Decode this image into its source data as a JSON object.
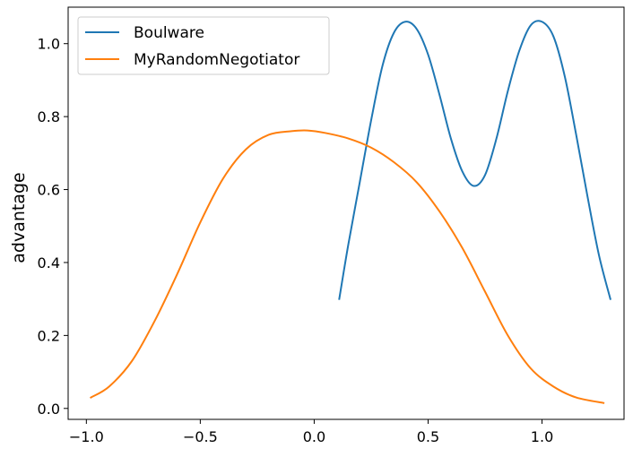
{
  "chart_data": {
    "type": "line",
    "title": "",
    "xlabel": "",
    "ylabel": "advantage",
    "xlim": [
      -1.08,
      1.36
    ],
    "ylim": [
      -0.03,
      1.1
    ],
    "xticks": [
      -1.0,
      -0.5,
      0.0,
      0.5,
      1.0
    ],
    "xtick_labels": [
      "−1.0",
      "−0.5",
      "0.0",
      "0.5",
      "1.0"
    ],
    "yticks": [
      0.0,
      0.2,
      0.4,
      0.6,
      0.8,
      1.0
    ],
    "ytick_labels": [
      "0.0",
      "0.2",
      "0.4",
      "0.6",
      "0.8",
      "1.0"
    ],
    "grid": false,
    "legend_position": "top-left",
    "series": [
      {
        "name": "Boulware",
        "color": "#1f77b4",
        "x": [
          0.11,
          0.15,
          0.2,
          0.25,
          0.3,
          0.35,
          0.4,
          0.45,
          0.5,
          0.55,
          0.6,
          0.65,
          0.7,
          0.75,
          0.8,
          0.85,
          0.9,
          0.95,
          1.0,
          1.05,
          1.1,
          1.15,
          1.2,
          1.25,
          1.3
        ],
        "y": [
          0.3,
          0.45,
          0.62,
          0.79,
          0.94,
          1.03,
          1.06,
          1.04,
          0.97,
          0.86,
          0.74,
          0.65,
          0.61,
          0.64,
          0.74,
          0.87,
          0.98,
          1.05,
          1.06,
          1.02,
          0.91,
          0.75,
          0.58,
          0.42,
          0.3
        ]
      },
      {
        "name": "MyRandomNegotiator",
        "color": "#ff7f0e",
        "x": [
          -0.98,
          -0.9,
          -0.8,
          -0.7,
          -0.6,
          -0.5,
          -0.4,
          -0.3,
          -0.2,
          -0.1,
          -0.03,
          0.05,
          0.15,
          0.25,
          0.35,
          0.45,
          0.55,
          0.65,
          0.75,
          0.85,
          0.95,
          1.05,
          1.15,
          1.27
        ],
        "y": [
          0.03,
          0.06,
          0.13,
          0.24,
          0.37,
          0.51,
          0.63,
          0.71,
          0.75,
          0.76,
          0.762,
          0.755,
          0.74,
          0.715,
          0.675,
          0.62,
          0.54,
          0.44,
          0.32,
          0.2,
          0.11,
          0.06,
          0.03,
          0.015
        ]
      }
    ]
  }
}
